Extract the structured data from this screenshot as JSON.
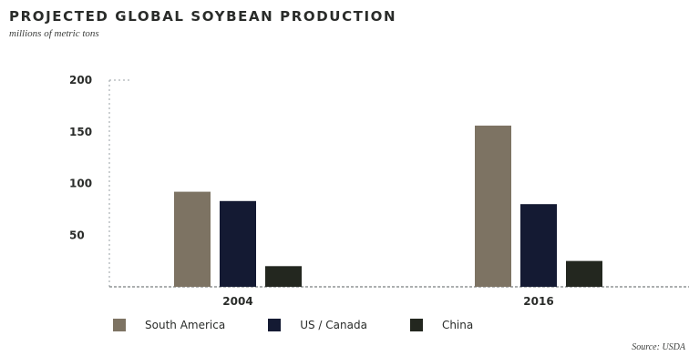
{
  "chart_data": {
    "type": "bar",
    "title": "PROJECTED GLOBAL SOYBEAN PRODUCTION",
    "subtitle": "millions of metric tons",
    "categories": [
      "2004",
      "2016"
    ],
    "series": [
      {
        "name": "South America",
        "values": [
          92,
          156
        ],
        "color": "#7d7363"
      },
      {
        "name": "US / Canada",
        "values": [
          83,
          80
        ],
        "color": "#141a33"
      },
      {
        "name": "China",
        "values": [
          20,
          25
        ],
        "color": "#23271f"
      }
    ],
    "ylim": [
      0,
      200
    ],
    "yticks": [
      50,
      100,
      150,
      200
    ],
    "grid": false,
    "legend_position": "bottom",
    "source": "Source: USDA"
  }
}
